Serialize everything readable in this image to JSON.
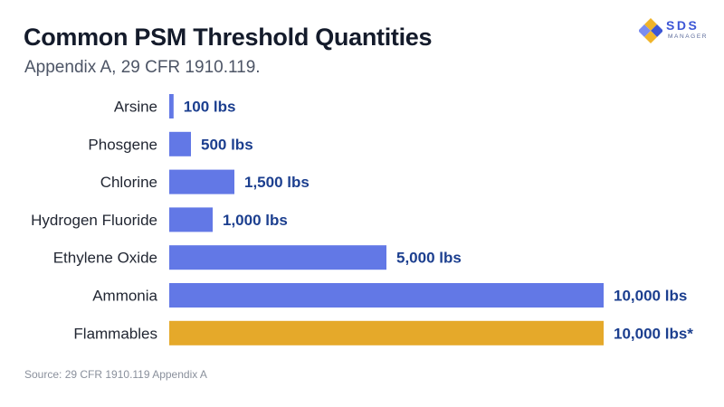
{
  "title": "Common PSM Threshold Quantities",
  "subtitle": "Appendix A, 29 CFR 1910.119.",
  "source": "Source: 29 CFR 1910.119 Appendix A",
  "logo": {
    "word": "SDS",
    "sub": "MANAGER"
  },
  "colors": {
    "default_bar": "#6278e6",
    "highlight_bar": "#e5a92a",
    "value_text": "#1c3f8f"
  },
  "chart_data": {
    "type": "bar",
    "orientation": "horizontal",
    "categories": [
      "Arsine",
      "Phosgene",
      "Chlorine",
      "Hydrogen Fluoride",
      "Ethylene Oxide",
      "Ammonia",
      "Flammables"
    ],
    "values": [
      100,
      500,
      1500,
      1000,
      5000,
      10000,
      10000
    ],
    "value_labels": [
      "100 lbs",
      "500 lbs",
      "1,500 lbs",
      "1,000 lbs",
      "5,000 lbs",
      "10,000 lbs",
      "10,000 lbs*"
    ],
    "highlight": [
      false,
      false,
      false,
      false,
      false,
      false,
      true
    ],
    "xlim": [
      0,
      10000
    ],
    "grid": false,
    "legend": "none"
  }
}
